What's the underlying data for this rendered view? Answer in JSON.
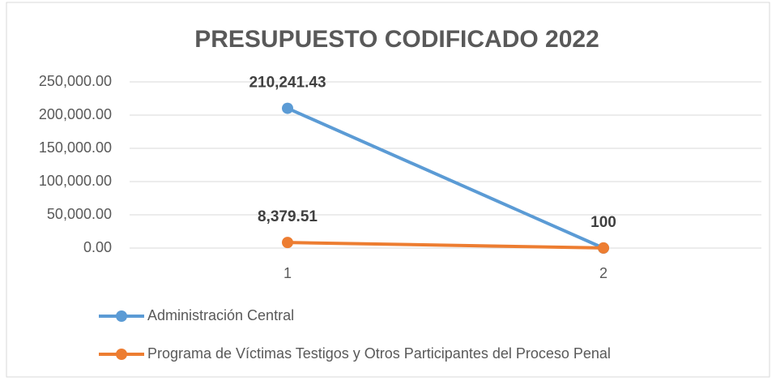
{
  "chart_data": {
    "type": "line",
    "title": "PRESUPUESTO CODIFICADO 2022",
    "categories": [
      "1",
      "2"
    ],
    "series": [
      {
        "name": "Administración Central",
        "color": "#5b9bd5",
        "values": [
          210241.43,
          0
        ],
        "value_labels": [
          "210,241.43",
          null
        ]
      },
      {
        "name": "Programa de Víctimas Testigos y Otros Participantes del Proceso Penal",
        "color": "#ed7d31",
        "values": [
          8379.51,
          100
        ],
        "value_labels": [
          "8,379.51",
          "100"
        ]
      }
    ],
    "ylim": [
      0,
      250000
    ],
    "yticks": [
      {
        "value": 0,
        "label": "0.00"
      },
      {
        "value": 50000,
        "label": "50,000.00"
      },
      {
        "value": 100000,
        "label": "100,000.00"
      },
      {
        "value": 150000,
        "label": "150,000.00"
      },
      {
        "value": 200000,
        "label": "200,000.00"
      },
      {
        "value": 250000,
        "label": "250,000.00"
      }
    ],
    "grid": true,
    "legend": "bottom"
  }
}
